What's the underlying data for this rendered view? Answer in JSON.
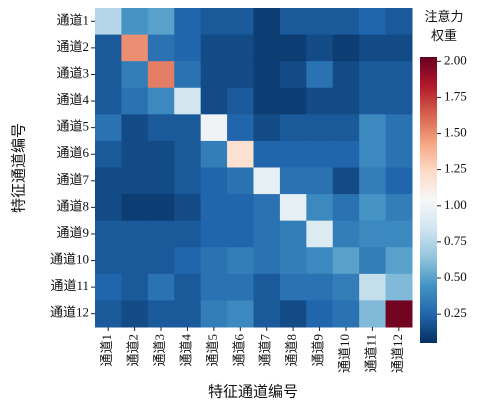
{
  "chart_data": {
    "type": "heatmap",
    "xlabel": "特征通道编号",
    "ylabel": "特征通道编号",
    "colorbar_label": [
      "注意力",
      "权重"
    ],
    "x_categories": [
      "通道1",
      "通道2",
      "通道3",
      "通道4",
      "通道5",
      "通道6",
      "通道7",
      "通道8",
      "通道9",
      "通道10",
      "通道11",
      "通道12"
    ],
    "y_categories": [
      "通道1",
      "通道2",
      "通道3",
      "通道4",
      "通道5",
      "通道6",
      "通道7",
      "通道8",
      "通道9",
      "通道10",
      "通道11",
      "通道12"
    ],
    "values": [
      [
        0.75,
        0.45,
        0.5,
        0.25,
        0.2,
        0.2,
        0.1,
        0.2,
        0.2,
        0.2,
        0.25,
        0.2
      ],
      [
        0.2,
        1.5,
        0.3,
        0.25,
        0.15,
        0.15,
        0.1,
        0.1,
        0.15,
        0.1,
        0.15,
        0.15
      ],
      [
        0.2,
        0.35,
        1.55,
        0.3,
        0.15,
        0.15,
        0.1,
        0.15,
        0.3,
        0.15,
        0.2,
        0.2
      ],
      [
        0.2,
        0.3,
        0.4,
        0.85,
        0.15,
        0.2,
        0.1,
        0.1,
        0.15,
        0.15,
        0.2,
        0.2
      ],
      [
        0.3,
        0.15,
        0.2,
        0.2,
        1.0,
        0.25,
        0.15,
        0.2,
        0.2,
        0.2,
        0.4,
        0.3
      ],
      [
        0.2,
        0.15,
        0.15,
        0.2,
        0.35,
        1.2,
        0.25,
        0.25,
        0.25,
        0.25,
        0.4,
        0.3
      ],
      [
        0.15,
        0.15,
        0.15,
        0.2,
        0.25,
        0.3,
        0.95,
        0.3,
        0.3,
        0.15,
        0.35,
        0.25
      ],
      [
        0.15,
        0.1,
        0.1,
        0.15,
        0.25,
        0.25,
        0.3,
        0.95,
        0.4,
        0.3,
        0.45,
        0.35
      ],
      [
        0.2,
        0.2,
        0.2,
        0.2,
        0.25,
        0.25,
        0.3,
        0.35,
        0.9,
        0.35,
        0.4,
        0.4
      ],
      [
        0.2,
        0.2,
        0.2,
        0.25,
        0.3,
        0.35,
        0.3,
        0.35,
        0.4,
        0.5,
        0.35,
        0.5
      ],
      [
        0.25,
        0.2,
        0.3,
        0.2,
        0.3,
        0.3,
        0.2,
        0.3,
        0.3,
        0.35,
        0.8,
        0.6
      ],
      [
        0.2,
        0.15,
        0.2,
        0.2,
        0.35,
        0.4,
        0.2,
        0.15,
        0.25,
        0.3,
        0.6,
        2.0
      ]
    ],
    "colormap": [
      "#053061",
      "#2166ac",
      "#4393c3",
      "#92c5de",
      "#d1e5f0",
      "#f7f7f7",
      "#fddbc7",
      "#f4a582",
      "#d6604d",
      "#b2182b",
      "#67001f"
    ],
    "zlim": [
      0.05,
      2.03
    ],
    "zticks": [
      {
        "value": 0.25,
        "label": "0.25"
      },
      {
        "value": 0.5,
        "label": "0.50"
      },
      {
        "value": 0.75,
        "label": "0.75"
      },
      {
        "value": 1.0,
        "label": "1.00"
      },
      {
        "value": 1.25,
        "label": "1.25"
      },
      {
        "value": 1.5,
        "label": "1.50"
      },
      {
        "value": 1.75,
        "label": "1.75"
      },
      {
        "value": 2.0,
        "label": "2.00"
      }
    ]
  }
}
